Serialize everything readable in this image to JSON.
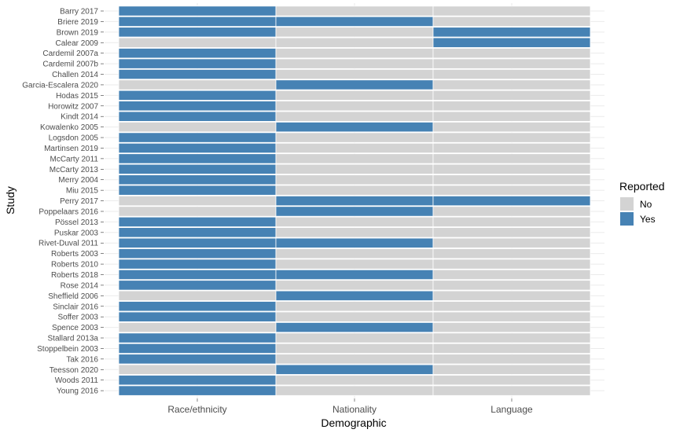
{
  "chart_data": {
    "type": "heatmap",
    "xlabel": "Demographic",
    "ylabel": "Study",
    "categories": [
      "Race/ethnicity",
      "Nationality",
      "Language"
    ],
    "studies": [
      "Barry 2017",
      "Briere 2019",
      "Brown 2019",
      "Calear 2009",
      "Cardemil 2007a",
      "Cardemil 2007b",
      "Challen 2014",
      "Garcia-Escalera 2020",
      "Hodas 2015",
      "Horowitz 2007",
      "Kindt 2014",
      "Kowalenko 2005",
      "Logsdon 2005",
      "Martinsen 2019",
      "McCarty 2011",
      "McCarty 2013",
      "Merry 2004",
      "Miu 2015",
      "Perry 2017",
      "Poppelaars 2016",
      "Pössel 2013",
      "Puskar 2003",
      "Rivet-Duval 2011",
      "Roberts 2003",
      "Roberts 2010",
      "Roberts 2018",
      "Rose 2014",
      "Sheffield 2006",
      "Sinclair 2016",
      "Soffer 2003",
      "Spence 2003",
      "Stallard 2013a",
      "Stoppelbein 2003",
      "Tak 2016",
      "Teesson 2020",
      "Woods 2011",
      "Young 2016"
    ],
    "values": [
      [
        "Yes",
        "No",
        "No"
      ],
      [
        "Yes",
        "Yes",
        "No"
      ],
      [
        "Yes",
        "No",
        "Yes"
      ],
      [
        "No",
        "No",
        "Yes"
      ],
      [
        "Yes",
        "No",
        "No"
      ],
      [
        "Yes",
        "No",
        "No"
      ],
      [
        "Yes",
        "No",
        "No"
      ],
      [
        "No",
        "Yes",
        "No"
      ],
      [
        "Yes",
        "No",
        "No"
      ],
      [
        "Yes",
        "No",
        "No"
      ],
      [
        "Yes",
        "No",
        "No"
      ],
      [
        "No",
        "Yes",
        "No"
      ],
      [
        "Yes",
        "No",
        "No"
      ],
      [
        "Yes",
        "No",
        "No"
      ],
      [
        "Yes",
        "No",
        "No"
      ],
      [
        "Yes",
        "No",
        "No"
      ],
      [
        "Yes",
        "No",
        "No"
      ],
      [
        "Yes",
        "No",
        "No"
      ],
      [
        "No",
        "Yes",
        "Yes"
      ],
      [
        "No",
        "Yes",
        "No"
      ],
      [
        "Yes",
        "No",
        "No"
      ],
      [
        "Yes",
        "No",
        "No"
      ],
      [
        "Yes",
        "Yes",
        "No"
      ],
      [
        "Yes",
        "No",
        "No"
      ],
      [
        "Yes",
        "No",
        "No"
      ],
      [
        "Yes",
        "Yes",
        "No"
      ],
      [
        "Yes",
        "No",
        "No"
      ],
      [
        "No",
        "Yes",
        "No"
      ],
      [
        "Yes",
        "No",
        "No"
      ],
      [
        "Yes",
        "No",
        "No"
      ],
      [
        "No",
        "Yes",
        "No"
      ],
      [
        "Yes",
        "No",
        "No"
      ],
      [
        "Yes",
        "No",
        "No"
      ],
      [
        "Yes",
        "No",
        "No"
      ],
      [
        "No",
        "Yes",
        "No"
      ],
      [
        "Yes",
        "No",
        "No"
      ],
      [
        "Yes",
        "No",
        "No"
      ]
    ],
    "legend": {
      "title": "Reported",
      "placement": "right",
      "entries": [
        {
          "label": "No",
          "color": "#d3d3d3"
        },
        {
          "label": "Yes",
          "color": "#4682b4"
        }
      ]
    },
    "grid": true
  }
}
